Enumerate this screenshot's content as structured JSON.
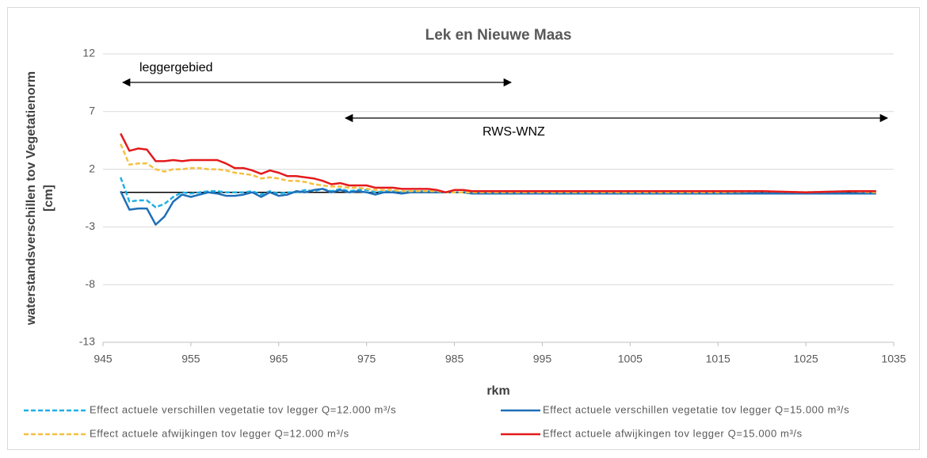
{
  "chart_data": {
    "type": "line",
    "title": "Lek en Nieuwe Maas",
    "xlabel": "rkm",
    "ylabel": [
      "waterstandsverschillen tov Vegetatienorm",
      "[cm]"
    ],
    "annotations": [
      "leggergebied",
      "RWS-WNZ"
    ],
    "x": [
      947,
      948,
      949,
      950,
      951,
      952,
      953,
      954,
      955,
      956,
      957,
      958,
      959,
      960,
      961,
      962,
      963,
      964,
      965,
      966,
      967,
      968,
      969,
      970,
      971,
      972,
      973,
      974,
      975,
      976,
      977,
      978,
      979,
      980,
      981,
      982,
      983,
      984,
      985,
      986,
      987,
      988,
      989,
      990,
      995,
      1000,
      1005,
      1010,
      1015,
      1020,
      1025,
      1030,
      1033
    ],
    "xlim": [
      945,
      1035
    ],
    "xticks": [
      945,
      955,
      965,
      975,
      985,
      995,
      1005,
      1015,
      1025,
      1035
    ],
    "ylim": [
      -13,
      12
    ],
    "yticks": [
      -13,
      -8,
      -3,
      2,
      7,
      12
    ],
    "grid": true,
    "series": [
      {
        "name": "Effect actuele verschillen vegetatie tov legger Q=12.000 m³/s",
        "color": "#1fb0e6",
        "dashed": true,
        "values": [
          1.3,
          -0.8,
          -0.7,
          -0.7,
          -1.3,
          -1.0,
          -0.4,
          0.0,
          -0.1,
          0.0,
          0.1,
          0.1,
          0.0,
          0.0,
          0.0,
          0.1,
          -0.2,
          0.1,
          -0.1,
          0.0,
          0.0,
          0.2,
          0.1,
          0.3,
          0.1,
          0.3,
          0.1,
          0.2,
          0.2,
          0.0,
          0.1,
          0.1,
          0.0,
          0.1,
          0.1,
          0.1,
          0,
          0,
          0,
          0,
          0,
          0,
          0,
          0,
          0,
          0,
          0,
          0,
          0,
          0,
          0,
          0.1,
          0
        ]
      },
      {
        "name": "Effect actuele verschillen vegetatie tov legger Q=15.000 m³/s",
        "color": "#1f6fb8",
        "dashed": false,
        "values": [
          0.1,
          -1.5,
          -1.4,
          -1.4,
          -2.8,
          -2.1,
          -0.8,
          -0.2,
          -0.4,
          -0.2,
          0.0,
          -0.1,
          -0.3,
          -0.3,
          -0.2,
          0.0,
          -0.4,
          0.0,
          -0.3,
          -0.2,
          0.1,
          0.0,
          0.2,
          0.3,
          0.0,
          0.2,
          0.0,
          0.1,
          0.0,
          -0.2,
          0.0,
          0.0,
          -0.1,
          0.0,
          0.0,
          0.0,
          0,
          0,
          0,
          0,
          -0.1,
          -0.1,
          -0.1,
          -0.1,
          -0.1,
          -0.1,
          -0.1,
          -0.1,
          -0.1,
          -0.1,
          -0.1,
          -0.1,
          -0.1
        ]
      },
      {
        "name": "Effect actuele afwijkingen tov legger Q=12.000 m³/s",
        "color": "#f5c040",
        "dashed": true,
        "values": [
          4.2,
          2.4,
          2.5,
          2.5,
          2.0,
          1.8,
          2.0,
          2.0,
          2.1,
          2.1,
          2.0,
          2.0,
          1.9,
          1.7,
          1.6,
          1.5,
          1.2,
          1.3,
          1.2,
          1.0,
          1.0,
          0.9,
          0.7,
          0.6,
          0.5,
          0.5,
          0.4,
          0.4,
          0.3,
          0.2,
          0.2,
          0.2,
          0.1,
          0.1,
          0.1,
          0.1,
          0.1,
          0,
          0,
          0,
          0,
          0,
          0,
          0,
          0,
          0,
          0,
          0,
          0,
          0.1,
          0,
          0.1,
          0
        ]
      },
      {
        "name": "Effect actuele afwijkingen tov legger Q=15.000 m³/s",
        "color": "#e41a1c",
        "dashed": false,
        "values": [
          5.1,
          3.6,
          3.8,
          3.7,
          2.7,
          2.7,
          2.8,
          2.7,
          2.8,
          2.8,
          2.8,
          2.8,
          2.5,
          2.1,
          2.1,
          1.9,
          1.6,
          1.9,
          1.7,
          1.4,
          1.4,
          1.3,
          1.2,
          1.0,
          0.7,
          0.8,
          0.6,
          0.6,
          0.6,
          0.4,
          0.4,
          0.4,
          0.3,
          0.3,
          0.3,
          0.3,
          0.2,
          0.0,
          0.2,
          0.2,
          0.1,
          0.1,
          0.1,
          0.1,
          0.1,
          0.1,
          0.1,
          0.1,
          0.1,
          0.1,
          0.0,
          0.1,
          0.1
        ]
      }
    ]
  }
}
